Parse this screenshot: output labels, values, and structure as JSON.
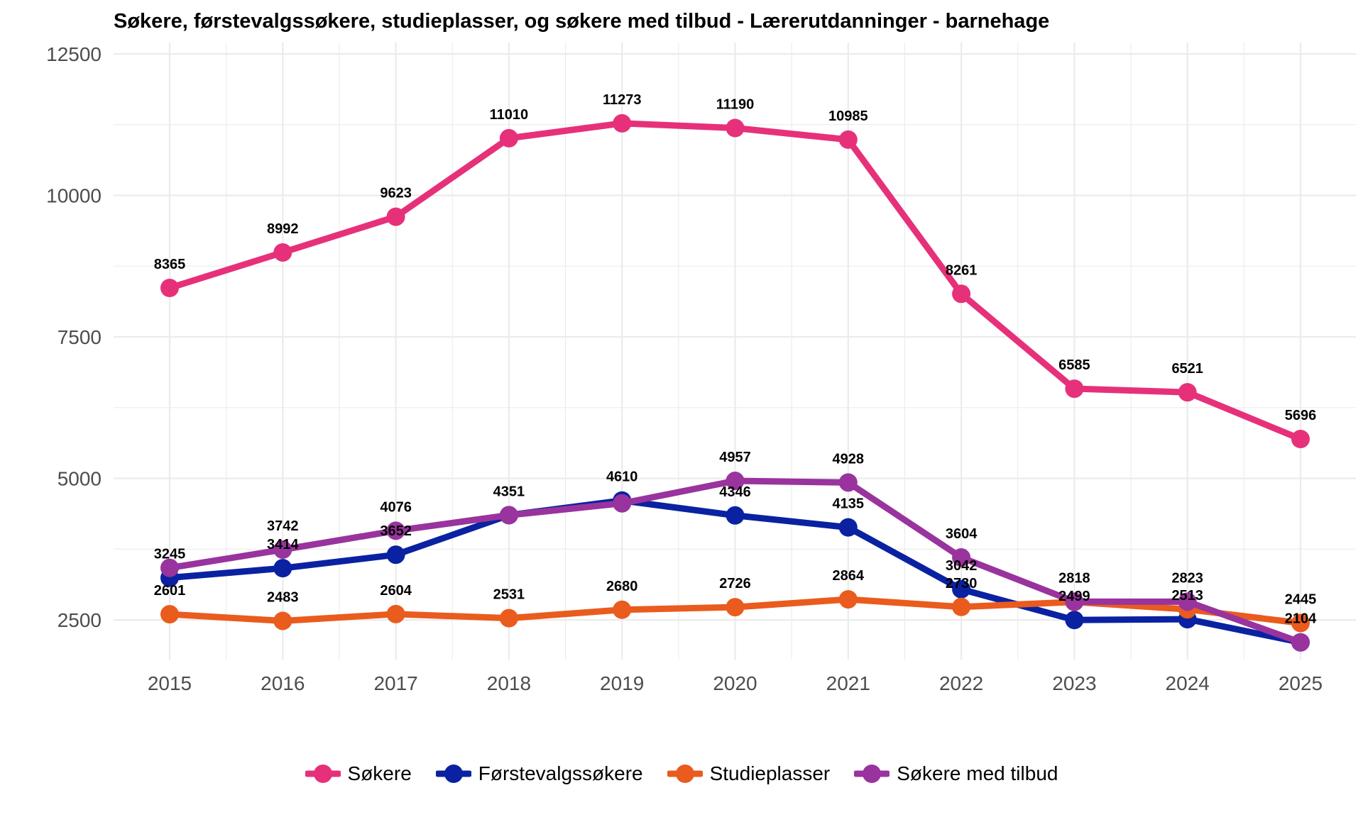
{
  "chart_data": {
    "type": "line",
    "title": "Søkere, førstevalgssøkere, studieplasser, og søkere med tilbud - Lærerutdanninger - barnehage",
    "xlabel": "",
    "ylabel": "",
    "x": [
      "2015",
      "2016",
      "2017",
      "2018",
      "2019",
      "2020",
      "2021",
      "2022",
      "2023",
      "2024",
      "2025"
    ],
    "y_ticks": [
      "2500",
      "5000",
      "7500",
      "10000",
      "12500"
    ],
    "ylim": [
      1800,
      12700
    ],
    "grid": true,
    "legend_position": "bottom",
    "series": [
      {
        "name": "Søkere",
        "color": "#E6317A",
        "values": [
          8365,
          8992,
          9623,
          11010,
          11273,
          11190,
          10985,
          8261,
          6585,
          6521,
          5696
        ]
      },
      {
        "name": "Førstevalgssøkere",
        "color": "#0A22A1",
        "values": [
          3245,
          3414,
          3652,
          4351,
          4610,
          4346,
          4135,
          3042,
          2499,
          2513,
          2104
        ]
      },
      {
        "name": "Studieplasser",
        "color": "#EA5B1E",
        "values": [
          2601,
          2483,
          2604,
          2531,
          2680,
          2726,
          2864,
          2730,
          2818,
          2687,
          2445
        ]
      },
      {
        "name": "Søkere med tilbud",
        "color": "#99339E",
        "values": [
          3420,
          3742,
          4076,
          4351,
          4560,
          4957,
          4928,
          3604,
          2823,
          2823,
          2104
        ]
      }
    ],
    "data_labels": [
      {
        "series": 0,
        "labels": [
          "8365",
          "8992",
          "9623",
          "11010",
          "11273",
          "11190",
          "10985",
          "8261",
          "6585",
          "6521",
          "5696"
        ]
      },
      {
        "series": 1,
        "labels": [
          "3245",
          "3414",
          "3652",
          "4351",
          "4610",
          "4346",
          "4135",
          "3042",
          "2499",
          "2513",
          "2104"
        ]
      },
      {
        "series": 2,
        "labels": [
          "2601",
          "2483",
          "2604",
          "2531",
          "2680",
          "2726",
          "2864",
          "2730",
          "2818",
          "",
          "2445"
        ]
      },
      {
        "series": 3,
        "labels": [
          "",
          "3742",
          "4076",
          "",
          "",
          "4957",
          "4928",
          "3604",
          "",
          "2823",
          ""
        ]
      }
    ]
  }
}
